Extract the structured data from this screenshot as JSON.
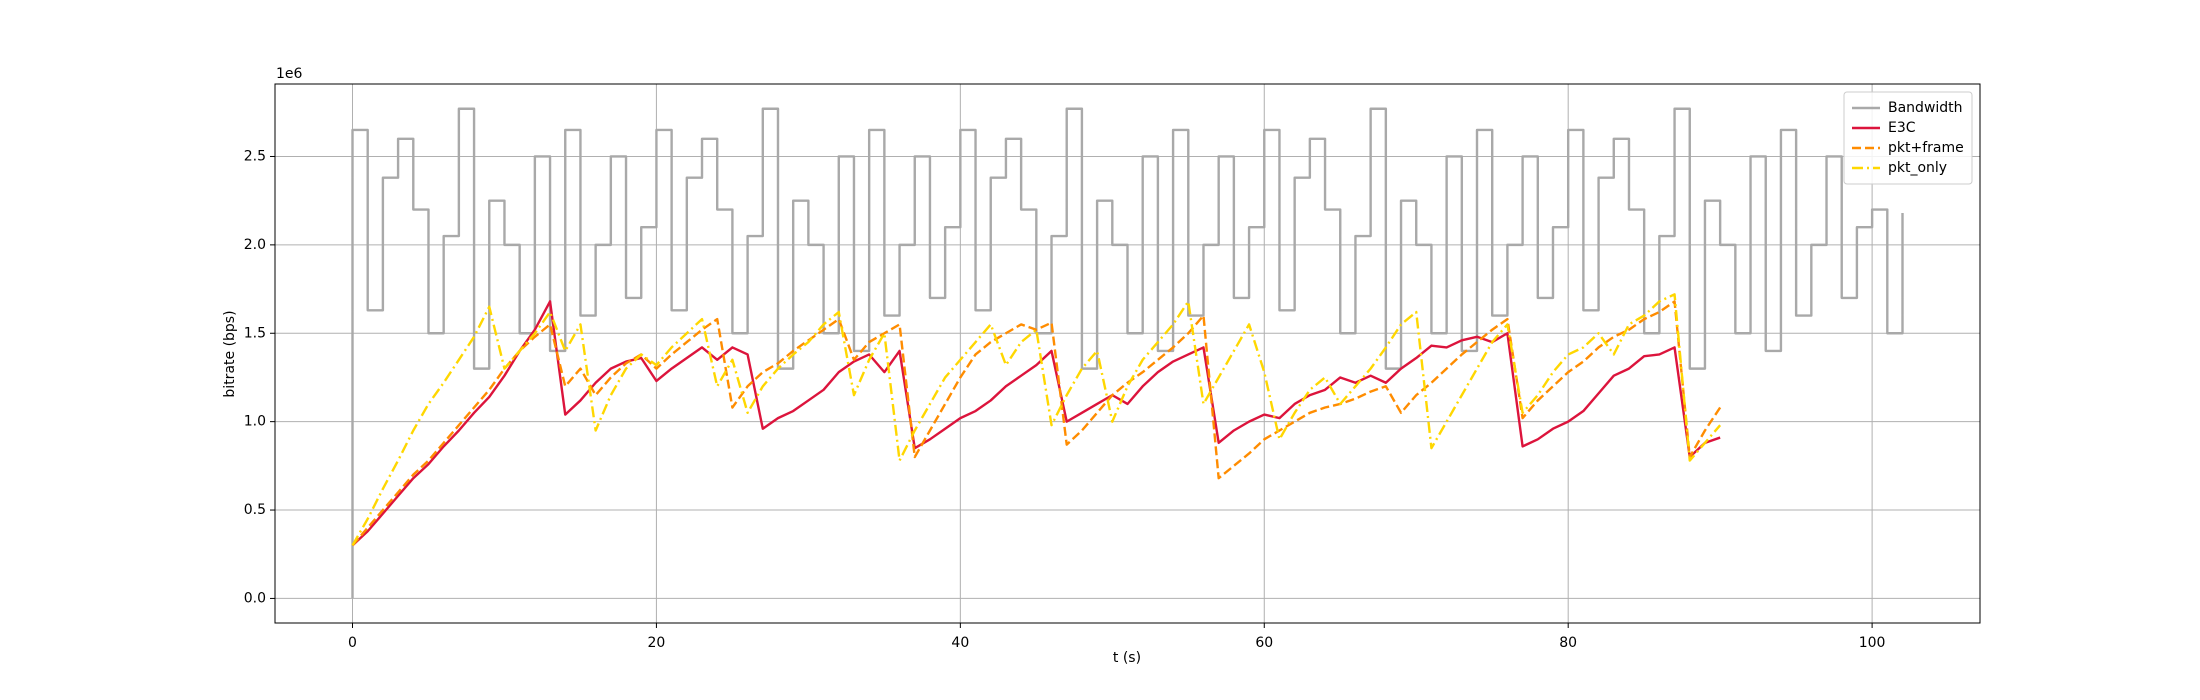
{
  "chart_data": {
    "type": "line",
    "xlabel": "t (s)",
    "ylabel": "bitrate (bps)",
    "y_offset_label": "1e6",
    "xlim": [
      -5.1,
      107.1
    ],
    "ylim": [
      -0.139,
      2.91
    ],
    "xticks": [
      0,
      20,
      40,
      60,
      80,
      100
    ],
    "yticks": [
      {
        "value": 0,
        "label": "0.0"
      },
      {
        "value": 0.5,
        "label": "0.5"
      },
      {
        "value": 1,
        "label": "1.0"
      },
      {
        "value": 1.5,
        "label": "1.5"
      },
      {
        "value": 2,
        "label": "2.0"
      },
      {
        "value": 2.5,
        "label": "2.5"
      }
    ],
    "grid": true,
    "legend_loc": "upper right",
    "x": [
      0,
      1,
      2,
      3,
      4,
      5,
      6,
      7,
      8,
      9,
      10,
      11,
      12,
      13,
      14,
      15,
      16,
      17,
      18,
      19,
      20,
      21,
      22,
      23,
      24,
      25,
      26,
      27,
      28,
      29,
      30,
      31,
      32,
      33,
      34,
      35,
      36,
      37,
      38,
      39,
      40,
      41,
      42,
      43,
      44,
      45,
      46,
      47,
      48,
      49,
      50,
      51,
      52,
      53,
      54,
      55,
      56,
      57,
      58,
      59,
      60,
      61,
      62,
      63,
      64,
      65,
      66,
      67,
      68,
      69,
      70,
      71,
      72,
      73,
      74,
      75,
      76,
      77,
      78,
      79,
      80,
      81,
      82,
      83,
      84,
      85,
      86,
      87,
      88,
      89,
      90
    ],
    "series": [
      {
        "name": "Bandwidth",
        "color": "#a9a9a9",
        "linestyle": "steps",
        "x": [
          0,
          0,
          1,
          2,
          3,
          4,
          5,
          6,
          7,
          8,
          9,
          10,
          11,
          12,
          13,
          14,
          15,
          16,
          17,
          18,
          19,
          20,
          21,
          22,
          23,
          24,
          25,
          26,
          27,
          28,
          29,
          30,
          31,
          32,
          33,
          34,
          35,
          36,
          37,
          38,
          39,
          40,
          41,
          42,
          43,
          44,
          45,
          46,
          47,
          48,
          49,
          50,
          51,
          52,
          53,
          54,
          55,
          56,
          57,
          58,
          59,
          60,
          61,
          62,
          63,
          64,
          65,
          66,
          67,
          68,
          69,
          70,
          71,
          72,
          73,
          74,
          75,
          76,
          77,
          78,
          79,
          80,
          81,
          82,
          83,
          84,
          85,
          86,
          87,
          88,
          89,
          90,
          91,
          92,
          93,
          94,
          95,
          96,
          97,
          98,
          99,
          100,
          101,
          102
        ],
        "values": [
          0,
          2.65,
          1.63,
          2.38,
          2.6,
          2.2,
          1.5,
          2.05,
          2.77,
          1.3,
          2.25,
          2.0,
          1.5,
          2.5,
          1.4,
          2.65,
          1.6,
          2.0,
          2.5,
          1.7,
          2.1,
          2.65,
          1.63,
          2.38,
          2.6,
          2.2,
          1.5,
          2.05,
          2.77,
          1.3,
          2.25,
          2.0,
          1.5,
          2.5,
          1.4,
          2.65,
          1.6,
          2.0,
          2.5,
          1.7,
          2.1,
          2.65,
          1.63,
          2.38,
          2.6,
          2.2,
          1.5,
          2.05,
          2.77,
          1.3,
          2.25,
          2.0,
          1.5,
          2.5,
          1.4,
          2.65,
          1.6,
          2.0,
          2.5,
          1.7,
          2.1,
          2.65,
          1.63,
          2.38,
          2.6,
          2.2,
          1.5,
          2.05,
          2.77,
          1.3,
          2.25,
          2.0,
          1.5,
          2.5,
          1.4,
          2.65,
          1.6,
          2.0,
          2.5,
          1.7,
          2.1,
          2.65,
          1.63,
          2.38,
          2.6,
          2.2,
          1.5,
          2.05,
          2.77,
          1.3,
          2.25,
          2.0,
          1.5,
          2.5,
          1.4,
          2.65,
          1.6,
          2.0,
          2.5,
          1.7,
          2.1,
          2.2,
          1.5,
          2.18
        ]
      },
      {
        "name": "E3C",
        "color": "#dc143c",
        "linestyle": "solid",
        "values": [
          0.3,
          0.38,
          0.48,
          0.58,
          0.68,
          0.76,
          0.86,
          0.95,
          1.05,
          1.14,
          1.26,
          1.4,
          1.52,
          1.68,
          1.04,
          1.12,
          1.22,
          1.3,
          1.34,
          1.36,
          1.23,
          1.3,
          1.36,
          1.42,
          1.35,
          1.42,
          1.38,
          0.96,
          1.02,
          1.06,
          1.12,
          1.18,
          1.28,
          1.34,
          1.38,
          1.28,
          1.4,
          0.85,
          0.9,
          0.96,
          1.02,
          1.06,
          1.12,
          1.2,
          1.26,
          1.32,
          1.4,
          1.0,
          1.05,
          1.1,
          1.15,
          1.1,
          1.2,
          1.28,
          1.34,
          1.38,
          1.42,
          0.88,
          0.95,
          1.0,
          1.04,
          1.02,
          1.1,
          1.15,
          1.18,
          1.25,
          1.22,
          1.26,
          1.22,
          1.3,
          1.36,
          1.43,
          1.42,
          1.46,
          1.48,
          1.45,
          1.5,
          0.86,
          0.9,
          0.96,
          1.0,
          1.06,
          1.16,
          1.26,
          1.3,
          1.37,
          1.38,
          1.42,
          0.8,
          0.88,
          0.91
        ]
      },
      {
        "name": "pkt+frame",
        "color": "#ff8c00",
        "linestyle": "dashed",
        "values": [
          0.3,
          0.4,
          0.5,
          0.6,
          0.7,
          0.78,
          0.88,
          0.98,
          1.08,
          1.18,
          1.3,
          1.4,
          1.48,
          1.55,
          1.2,
          1.3,
          1.15,
          1.25,
          1.33,
          1.38,
          1.3,
          1.38,
          1.45,
          1.52,
          1.58,
          1.08,
          1.2,
          1.28,
          1.33,
          1.4,
          1.46,
          1.52,
          1.58,
          1.35,
          1.45,
          1.5,
          1.55,
          0.8,
          0.95,
          1.1,
          1.25,
          1.38,
          1.45,
          1.5,
          1.55,
          1.52,
          1.56,
          0.87,
          0.95,
          1.05,
          1.15,
          1.22,
          1.28,
          1.35,
          1.42,
          1.5,
          1.6,
          0.68,
          0.75,
          0.82,
          0.9,
          0.95,
          1.0,
          1.05,
          1.08,
          1.1,
          1.13,
          1.17,
          1.2,
          1.05,
          1.15,
          1.22,
          1.3,
          1.38,
          1.45,
          1.52,
          1.58,
          1.02,
          1.12,
          1.2,
          1.28,
          1.34,
          1.42,
          1.48,
          1.52,
          1.58,
          1.62,
          1.68,
          0.8,
          0.95,
          1.08
        ]
      },
      {
        "name": "pkt_only",
        "color": "#ffd700",
        "linestyle": "dashdot",
        "values": [
          0.3,
          0.45,
          0.62,
          0.78,
          0.95,
          1.1,
          1.22,
          1.35,
          1.48,
          1.65,
          1.3,
          1.4,
          1.5,
          1.62,
          1.4,
          1.55,
          0.95,
          1.15,
          1.3,
          1.38,
          1.32,
          1.42,
          1.5,
          1.58,
          1.2,
          1.35,
          1.05,
          1.2,
          1.3,
          1.38,
          1.45,
          1.55,
          1.62,
          1.15,
          1.35,
          1.5,
          0.78,
          0.95,
          1.1,
          1.25,
          1.35,
          1.45,
          1.55,
          1.32,
          1.45,
          1.52,
          0.98,
          1.15,
          1.3,
          1.4,
          1.0,
          1.2,
          1.35,
          1.45,
          1.55,
          1.68,
          1.1,
          1.25,
          1.4,
          1.55,
          1.28,
          0.9,
          1.05,
          1.18,
          1.25,
          1.1,
          1.2,
          1.3,
          1.42,
          1.55,
          1.62,
          0.85,
          1.0,
          1.15,
          1.3,
          1.45,
          1.55,
          1.05,
          1.15,
          1.28,
          1.38,
          1.42,
          1.5,
          1.38,
          1.55,
          1.6,
          1.68,
          1.72,
          0.78,
          0.88,
          0.98
        ]
      }
    ]
  }
}
